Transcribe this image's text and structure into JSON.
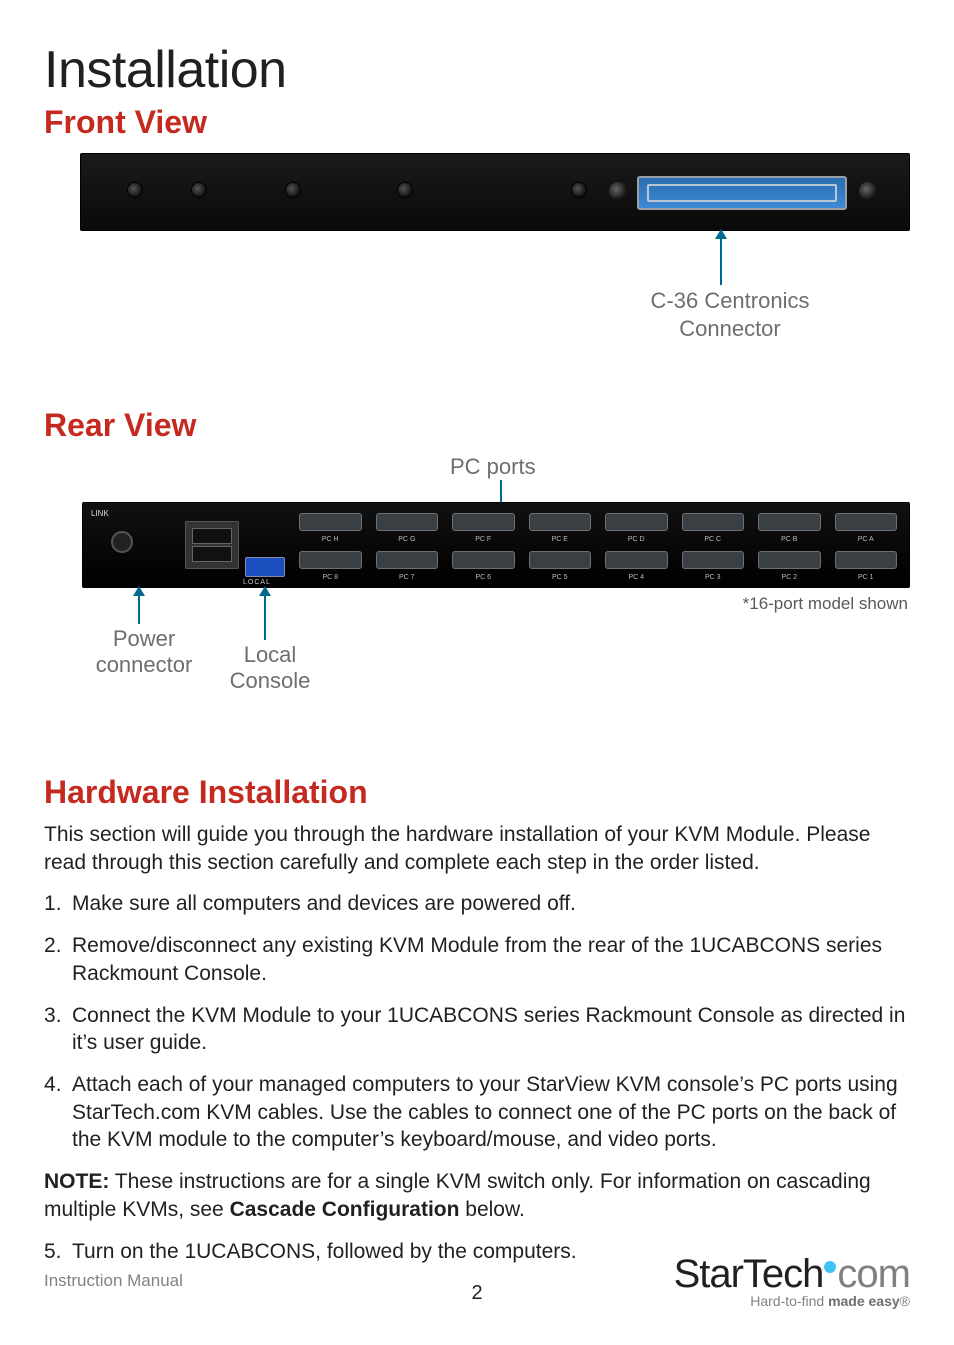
{
  "title": "Installation",
  "front": {
    "heading": "Front View",
    "connector_label": "C-36 Centronics Connector"
  },
  "rear": {
    "heading": "Rear View",
    "pc_ports_label": "PC ports",
    "model_note": "*16-port model shown",
    "power_label": "Power connector",
    "local_label": "Local Console",
    "ports_top": [
      "PC H",
      "PC G",
      "PC F",
      "PC E",
      "PC D",
      "PC C",
      "PC B",
      "PC A"
    ],
    "ports_bot": [
      "PC 8",
      "PC 7",
      "PC 6",
      "PC 5",
      "PC 4",
      "PC 3",
      "PC 2",
      "PC 1"
    ],
    "lnk_text": "LINK",
    "local_text": "LOCAL"
  },
  "hardware": {
    "heading": "Hardware Installation",
    "intro": "This section will guide you through the hardware installation of your KVM Module. Please read through this section carefully and complete each step in the order listed.",
    "steps": [
      "Make sure all computers and devices are powered off.",
      "Remove/disconnect any existing KVM Module from the rear of the 1UCABCONS series Rackmount Console.",
      "Connect the KVM Module to your 1UCABCONS series Rackmount Console as directed in it’s user guide.",
      "Attach each of your managed computers to your StarView KVM console’s PC ports using StarTech.com KVM cables. Use the cables to connect one of the PC ports on the back of the KVM module to the computer’s keyboard/mouse, and video ports."
    ],
    "note_prefix": "NOTE:",
    "note_text_a": " These instructions are for a single KVM switch only. For information on cascading multiple KVMs, see ",
    "note_bold": "Cascade Configuration",
    "note_text_b": " below.",
    "step5": "Turn on the 1UCABCONS, followed by the computers."
  },
  "footer": {
    "doc_label": "Instruction Manual",
    "page": "2",
    "logo_black": "StarTech",
    "logo_grey": "com",
    "tagline_plain": "Hard-to-find ",
    "tagline_bold": "made easy",
    "registered": "®"
  },
  "colors": {
    "accent_red": "#c52a20",
    "arrow_blue": "#006a8e",
    "label_grey": "#6d6e71",
    "logo_dot": "#3ec1f3"
  }
}
